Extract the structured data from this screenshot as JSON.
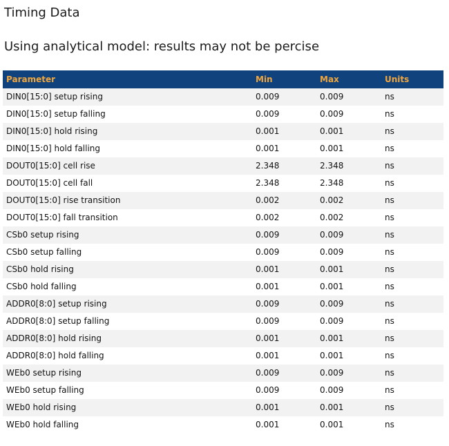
{
  "page": {
    "title": "Timing Data",
    "subtitle": "Using analytical model: results may not be percise"
  },
  "colors": {
    "header_bg": "#10427e",
    "header_text": "#f0a63c",
    "row_alt_bg": "#f2f2f2",
    "body_text": "#111111"
  },
  "table": {
    "columns": {
      "parameter": "Parameter",
      "min": "Min",
      "max": "Max",
      "units": "Units"
    },
    "rows": [
      {
        "parameter": "DIN0[15:0] setup rising",
        "min": "0.009",
        "max": "0.009",
        "units": "ns"
      },
      {
        "parameter": "DIN0[15:0] setup falling",
        "min": "0.009",
        "max": "0.009",
        "units": "ns"
      },
      {
        "parameter": "DIN0[15:0] hold rising",
        "min": "0.001",
        "max": "0.001",
        "units": "ns"
      },
      {
        "parameter": "DIN0[15:0] hold falling",
        "min": "0.001",
        "max": "0.001",
        "units": "ns"
      },
      {
        "parameter": "DOUT0[15:0] cell rise",
        "min": "2.348",
        "max": "2.348",
        "units": "ns"
      },
      {
        "parameter": "DOUT0[15:0] cell fall",
        "min": "2.348",
        "max": "2.348",
        "units": "ns"
      },
      {
        "parameter": "DOUT0[15:0] rise transition",
        "min": "0.002",
        "max": "0.002",
        "units": "ns"
      },
      {
        "parameter": "DOUT0[15:0] fall transition",
        "min": "0.002",
        "max": "0.002",
        "units": "ns"
      },
      {
        "parameter": "CSb0 setup rising",
        "min": "0.009",
        "max": "0.009",
        "units": "ns"
      },
      {
        "parameter": "CSb0 setup falling",
        "min": "0.009",
        "max": "0.009",
        "units": "ns"
      },
      {
        "parameter": "CSb0 hold rising",
        "min": "0.001",
        "max": "0.001",
        "units": "ns"
      },
      {
        "parameter": "CSb0 hold falling",
        "min": "0.001",
        "max": "0.001",
        "units": "ns"
      },
      {
        "parameter": "ADDR0[8:0] setup rising",
        "min": "0.009",
        "max": "0.009",
        "units": "ns"
      },
      {
        "parameter": "ADDR0[8:0] setup falling",
        "min": "0.009",
        "max": "0.009",
        "units": "ns"
      },
      {
        "parameter": "ADDR0[8:0] hold rising",
        "min": "0.001",
        "max": "0.001",
        "units": "ns"
      },
      {
        "parameter": "ADDR0[8:0] hold falling",
        "min": "0.001",
        "max": "0.001",
        "units": "ns"
      },
      {
        "parameter": "WEb0 setup rising",
        "min": "0.009",
        "max": "0.009",
        "units": "ns"
      },
      {
        "parameter": "WEb0 setup falling",
        "min": "0.009",
        "max": "0.009",
        "units": "ns"
      },
      {
        "parameter": "WEb0 hold rising",
        "min": "0.001",
        "max": "0.001",
        "units": "ns"
      },
      {
        "parameter": "WEb0 hold falling",
        "min": "0.001",
        "max": "0.001",
        "units": "ns"
      }
    ]
  }
}
